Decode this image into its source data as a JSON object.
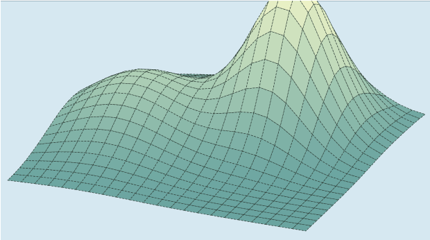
{
  "colors": {
    "background": "#d6e8f1",
    "border": "#9fb6c2",
    "surface_low": "#6aa4a0",
    "surface_mid": "#b6d4b8",
    "surface_high": "#eef3c6",
    "mesh_line": "#2f3f38"
  }
}
